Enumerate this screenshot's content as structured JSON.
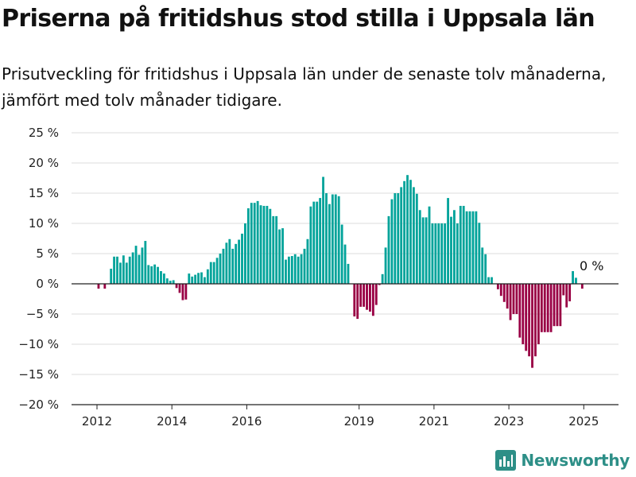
{
  "title": "Priserna på fritidshus stod stilla i Uppsala län",
  "subtitle": "Prisutveckling för fritidshus i Uppsala län under de senaste tolv månaderna, jämfört med tolv månader tidigare.",
  "brand": "Newsworthy",
  "colors": {
    "positive": "#00a39a",
    "negative": "#990044",
    "grid": "#dddddd",
    "baseline": "#222222",
    "brand": "#2d8f87"
  },
  "chart_data": {
    "type": "bar",
    "title": "Priserna på fritidshus stod stilla i Uppsala län",
    "xlabel": "",
    "ylabel": "",
    "unit": "%",
    "ylim": [
      -20,
      25
    ],
    "yticks": [
      25,
      20,
      15,
      10,
      5,
      0,
      -5,
      -10,
      -15,
      -20
    ],
    "ytick_labels": [
      "25 %",
      "20 %",
      "15 %",
      "10 %",
      "5 %",
      "0 %",
      "−5 %",
      "−10 %",
      "−15 %",
      "−20 %"
    ],
    "xticks": [
      "2012",
      "2014",
      "2016",
      "2019",
      "2021",
      "2023",
      "2025"
    ],
    "grid": true,
    "annotation": "0 %",
    "start": "2011-01",
    "values": [
      null,
      null,
      null,
      null,
      null,
      null,
      null,
      null,
      null,
      null,
      null,
      null,
      -0.8,
      null,
      -0.8,
      null,
      2.5,
      4.5,
      4.5,
      3.5,
      4.7,
      3.5,
      4.5,
      5.2,
      6.3,
      4.8,
      6.0,
      7.1,
      3.1,
      2.9,
      3.2,
      2.8,
      2.1,
      1.7,
      0.9,
      0.5,
      0.6,
      -0.7,
      -1.5,
      -2.7,
      -2.6,
      1.7,
      1.2,
      1.5,
      1.8,
      1.9,
      1.1,
      2.4,
      3.6,
      3.6,
      4.3,
      5.0,
      5.8,
      6.8,
      7.4,
      5.8,
      6.6,
      7.3,
      8.3,
      10.0,
      12.5,
      13.4,
      13.4,
      13.7,
      13.0,
      12.9,
      12.9,
      12.4,
      11.2,
      11.2,
      9.0,
      9.2,
      4.0,
      4.5,
      4.6,
      4.9,
      4.5,
      4.9,
      5.8,
      7.4,
      12.8,
      13.6,
      13.6,
      14.2,
      17.7,
      15.0,
      13.2,
      14.8,
      14.8,
      14.5,
      9.8,
      6.5,
      3.3,
      null,
      -5.4,
      -5.8,
      -3.8,
      -3.8,
      -4.3,
      -4.6,
      -5.3,
      -3.5,
      -0.2,
      1.6,
      6.0,
      11.2,
      14.0,
      15.0,
      15.0,
      16.0,
      17.0,
      18.0,
      17.2,
      16.0,
      14.9,
      12.2,
      11.0,
      11.0,
      12.8,
      10.0,
      10.0,
      10.0,
      10.0,
      10.0,
      14.2,
      11.1,
      12.2,
      10.0,
      12.9,
      12.9,
      12.0,
      12.0,
      12.0,
      12.0,
      10.1,
      6.0,
      4.9,
      1.1,
      1.1,
      null,
      -0.9,
      -2.0,
      -3.0,
      -4.1,
      -6.0,
      -5.0,
      -5.0,
      -8.9,
      -10.0,
      -11.1,
      -12.0,
      -13.9,
      -12.0,
      -10.0,
      -8.0,
      -8.0,
      -8.0,
      -8.0,
      -7.0,
      -7.0,
      -7.0,
      -1.9,
      -3.9,
      -2.9,
      2.1,
      1.0,
      null,
      -0.8
    ]
  }
}
